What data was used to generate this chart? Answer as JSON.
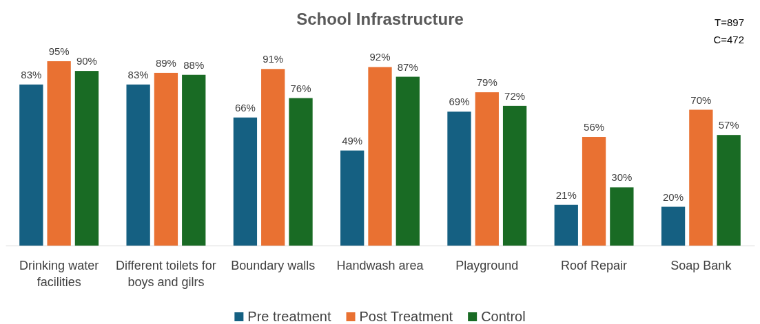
{
  "chart_data": {
    "type": "bar",
    "title": "School Infrastructure",
    "categories": [
      "Drinking water facilities",
      "Different toilets for boys and gilrs",
      "Boundary walls",
      "Handwash area",
      "Playground",
      "Roof Repair",
      "Soap Bank"
    ],
    "series": [
      {
        "name": "Pre treatment",
        "color": "#156082",
        "values": [
          83,
          83,
          66,
          49,
          69,
          21,
          20
        ],
        "value_labels": [
          "83%",
          "83%",
          "66%",
          "49%",
          "69%",
          "21%",
          "20%"
        ]
      },
      {
        "name": "Post Treatment",
        "color": "#e97132",
        "values": [
          95,
          89,
          91,
          92,
          79,
          56,
          70
        ],
        "value_labels": [
          "95%",
          "89%",
          "91%",
          "92%",
          "79%",
          "56%",
          "70%"
        ]
      },
      {
        "name": "Control",
        "color": "#196b24",
        "values": [
          90,
          88,
          76,
          87,
          72,
          30,
          57
        ],
        "value_labels": [
          "90%",
          "88%",
          "76%",
          "87%",
          "72%",
          "30%",
          "57%"
        ]
      }
    ],
    "tick_labels": "x",
    "legend": "bottom",
    "annotations": [
      "T=897",
      "C=472"
    ]
  }
}
